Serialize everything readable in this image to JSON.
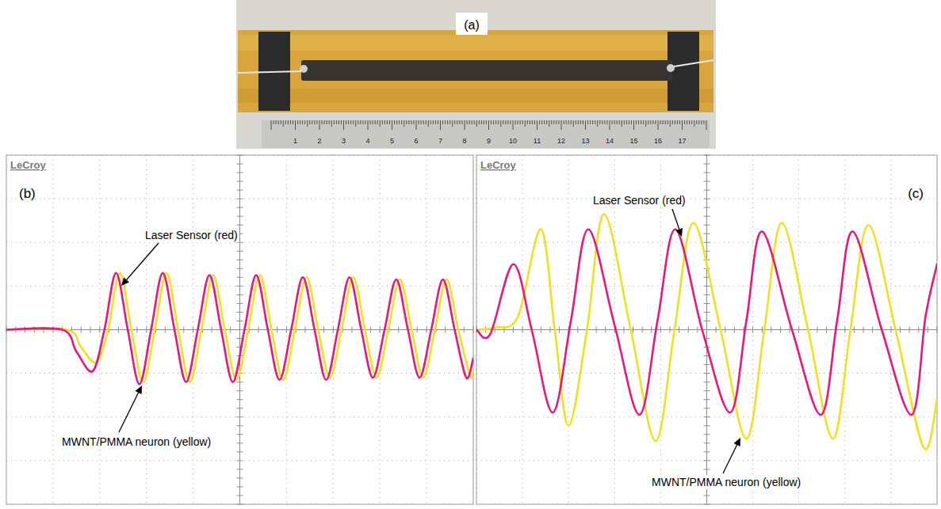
{
  "photo": {
    "label": "(a)",
    "ruler_ticks": [
      1,
      2,
      3,
      4,
      5,
      6,
      7,
      8,
      9,
      10,
      11,
      12,
      13,
      14,
      15,
      16,
      17
    ]
  },
  "chart_data": [
    {
      "type": "line",
      "title": "(b)",
      "subtitle": "LeCroy",
      "xlim": [
        0,
        10
      ],
      "ylim": [
        -4,
        4
      ],
      "xticks": [
        0,
        1,
        2,
        3,
        4,
        5,
        6,
        7,
        8,
        9,
        10
      ],
      "yticks": [
        -4,
        -3,
        -2,
        -1,
        0,
        1,
        2,
        3,
        4
      ],
      "grid": true,
      "tick_labels": false,
      "series": [
        {
          "name": "MWNT/PMMA neuron (yellow)",
          "color": "#ece21e",
          "x": [
            0,
            1.3,
            1.6,
            1.93,
            2.18,
            2.43,
            2.68,
            2.93,
            3.18,
            3.43,
            3.68,
            3.93,
            4.18,
            4.43,
            4.68,
            4.93,
            5.18,
            5.43,
            5.68,
            5.93,
            6.18,
            6.43,
            6.68,
            6.93,
            7.18,
            7.43,
            7.68,
            7.93,
            8.18,
            8.43,
            8.68,
            8.93,
            9.18,
            9.43,
            9.68,
            9.93,
            10
          ],
          "values": [
            0,
            0,
            -0.4,
            -0.75,
            0,
            1.3,
            0,
            -1.2,
            0,
            1.3,
            0,
            -1.2,
            0,
            1.25,
            0,
            -1.15,
            0,
            1.25,
            0,
            -1.15,
            0,
            1.2,
            0,
            -1.1,
            0,
            1.2,
            0,
            -1.1,
            0,
            1.15,
            0,
            -1.1,
            0,
            1.15,
            0,
            -1.05,
            -0.95
          ]
        },
        {
          "name": "Laser Sensor (red)",
          "color": "#e6177e",
          "x": [
            0,
            1.2,
            1.5,
            1.85,
            2.1,
            2.35,
            2.6,
            2.85,
            3.1,
            3.35,
            3.6,
            3.85,
            4.1,
            4.35,
            4.6,
            4.85,
            5.1,
            5.35,
            5.6,
            5.85,
            6.1,
            6.35,
            6.6,
            6.85,
            7.1,
            7.35,
            7.6,
            7.85,
            8.1,
            8.35,
            8.6,
            8.85,
            9.1,
            9.35,
            9.6,
            9.85,
            10
          ],
          "values": [
            0,
            0,
            -0.5,
            -0.95,
            0,
            1.3,
            0,
            -1.25,
            0,
            1.3,
            0,
            -1.2,
            0,
            1.25,
            0,
            -1.2,
            0,
            1.25,
            0,
            -1.15,
            0,
            1.2,
            0,
            -1.15,
            0,
            1.2,
            0,
            -1.1,
            0,
            1.15,
            0,
            -1.1,
            0,
            1.15,
            0,
            -1.1,
            -0.65
          ]
        }
      ]
    },
    {
      "type": "line",
      "title": "(c)",
      "subtitle": "LeCroy",
      "xlim": [
        0,
        10
      ],
      "ylim": [
        -4,
        4
      ],
      "xticks": [
        0,
        1,
        2,
        3,
        4,
        5,
        6,
        7,
        8,
        9,
        10
      ],
      "yticks": [
        -4,
        -3,
        -2,
        -1,
        0,
        1,
        2,
        3,
        4
      ],
      "grid": true,
      "tick_labels": false,
      "series": [
        {
          "name": "MWNT/PMMA neuron (yellow)",
          "color": "#ece21e",
          "x": [
            0,
            0.4,
            0.9,
            1.4,
            1.7,
            2.0,
            2.4,
            2.77,
            3.35,
            3.89,
            4.3,
            4.71,
            5.3,
            5.86,
            6.25,
            6.63,
            7.2,
            7.74,
            8.12,
            8.51,
            9.1,
            9.71,
            10
          ],
          "values": [
            0,
            0.05,
            0.3,
            2.3,
            0,
            -2.2,
            0,
            2.65,
            0,
            -2.55,
            0,
            2.45,
            0,
            -2.5,
            0,
            2.45,
            0,
            -2.5,
            0,
            2.4,
            0,
            -2.7,
            -1.6
          ]
        },
        {
          "name": "Laser Sensor (red)",
          "color": "#e6177e",
          "x": [
            0,
            0.3,
            0.8,
            1.2,
            1.66,
            2.05,
            2.43,
            3.0,
            3.54,
            3.93,
            4.32,
            4.9,
            5.51,
            5.86,
            6.2,
            6.85,
            7.48,
            7.83,
            8.17,
            8.8,
            9.45,
            9.75,
            10
          ],
          "values": [
            0,
            -0.1,
            1.5,
            0,
            -1.9,
            0.2,
            2.3,
            0.1,
            -1.95,
            0.2,
            2.3,
            0,
            -1.9,
            0.2,
            2.25,
            0,
            -1.95,
            0.2,
            2.25,
            0,
            -1.95,
            0.3,
            1.5
          ]
        }
      ]
    }
  ]
}
